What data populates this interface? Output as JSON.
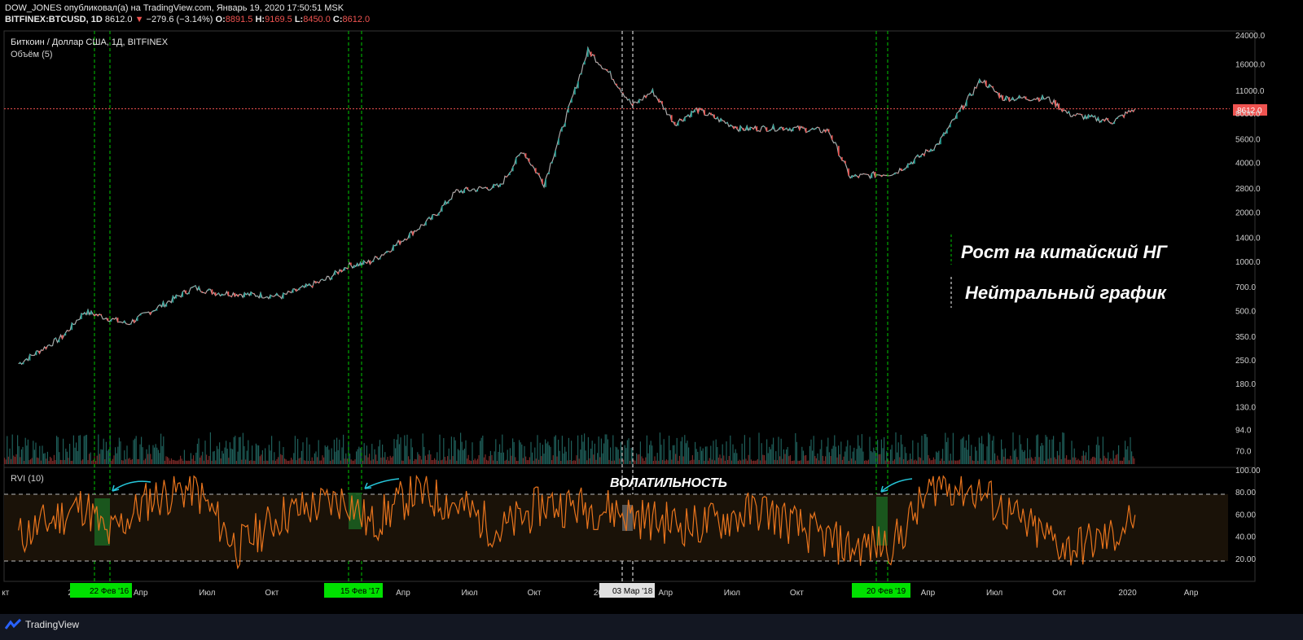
{
  "header": {
    "publisher_line": "DOW_JONES опубликовал(а) на TradingView.com, Январь 19, 2020 17:50:51 MSK",
    "symbol": "BITFINEX:BTCUSD, 1D",
    "last": "8612.0",
    "change": "−279.6 (−3.14%)",
    "o_label": "O:",
    "o": "8891.5",
    "h_label": "H:",
    "h": "9169.5",
    "l_label": "L:",
    "l": "8450.0",
    "c_label": "C:",
    "c": "8612.0"
  },
  "pane_main": {
    "title": "Биткоин / Доллар США, 1Д, BITFINEX",
    "volume_label": "Объём (5)",
    "price_badge": "8612.0",
    "annotations": [
      "Рост на китайский НГ",
      "Нейтральный график"
    ]
  },
  "pane_rvi": {
    "label": "RVI (10)",
    "annotation": "ВОЛАТИЛЬНОСТЬ"
  },
  "x_axis": {
    "labels": [
      "кт",
      "2016",
      "Апр",
      "Июл",
      "Окт",
      "2017",
      "Апр",
      "Июл",
      "Окт",
      "2018",
      "Апр",
      "Июл",
      "Окт",
      "2019",
      "Апр",
      "Июл",
      "Окт",
      "2020",
      "Апр"
    ],
    "marker_badges": [
      "22 Фев '16",
      "15 Фев '17",
      "03 Мар '18",
      "20 Фев '19"
    ]
  },
  "footer": {
    "brand": "TradingView"
  },
  "colors": {
    "background": "#000000",
    "candle_up": "#26a69a",
    "candle_down": "#ef5350",
    "price_line": "#ef5350",
    "marker_green": "#00c800",
    "marker_white": "#ffffff",
    "rvi_line": "#e8741d",
    "arrow": "#26c6da"
  },
  "chart_data": [
    {
      "type": "line",
      "title": "Биткоин / Доллар США, 1Д, BITFINEX",
      "scale": "log",
      "y_ticks": [
        24000,
        16000,
        11000,
        8000,
        5600,
        4000,
        2800,
        2000,
        1400,
        1000,
        700,
        500,
        350,
        250,
        180,
        130,
        94,
        70
      ],
      "ylim": [
        60,
        24000
      ],
      "series": [
        {
          "name": "BTCUSD",
          "x": [
            "2015-10",
            "2015-12",
            "2016-01",
            "2016-03",
            "2016-06",
            "2016-07",
            "2016-10",
            "2016-12",
            "2017-01",
            "2017-02",
            "2017-03",
            "2017-05",
            "2017-06",
            "2017-08",
            "2017-09",
            "2017-10",
            "2017-12",
            "2018-01",
            "2018-02",
            "2018-03",
            "2018-04",
            "2018-05",
            "2018-07",
            "2018-09",
            "2018-11",
            "2018-12",
            "2019-02",
            "2019-04",
            "2019-06",
            "2019-07",
            "2019-09",
            "2019-10",
            "2019-12",
            "2020-01"
          ],
          "values": [
            240,
            350,
            500,
            420,
            700,
            650,
            620,
            780,
            950,
            1000,
            1200,
            1900,
            2700,
            2900,
            4800,
            3000,
            19500,
            14000,
            9000,
            11000,
            7000,
            8500,
            6500,
            6600,
            6300,
            3300,
            3500,
            5200,
            13000,
            10000,
            10000,
            8000,
            7200,
            8612
          ]
        }
      ],
      "price_line": 8612.0
    },
    {
      "type": "line",
      "title": "RVI (10)",
      "ylim": [
        0,
        100
      ],
      "y_ticks": [
        100,
        80,
        60,
        40,
        20
      ],
      "series": [
        {
          "name": "RVI (10)",
          "x": [
            "2015-10",
            "2016-01",
            "2016-02",
            "2016-04",
            "2016-06",
            "2016-08",
            "2016-10",
            "2017-01",
            "2017-02",
            "2017-04",
            "2017-06",
            "2017-08",
            "2017-10",
            "2018-01",
            "2018-03",
            "2018-05",
            "2018-08",
            "2018-10",
            "2018-12",
            "2019-02",
            "2019-04",
            "2019-06",
            "2019-08",
            "2019-10",
            "2019-12",
            "2020-01"
          ],
          "values": [
            40,
            70,
            40,
            75,
            85,
            30,
            60,
            75,
            50,
            80,
            70,
            45,
            70,
            65,
            55,
            50,
            65,
            45,
            30,
            35,
            90,
            80,
            50,
            30,
            40,
            60
          ]
        }
      ],
      "bands": [
        20,
        80
      ]
    }
  ]
}
